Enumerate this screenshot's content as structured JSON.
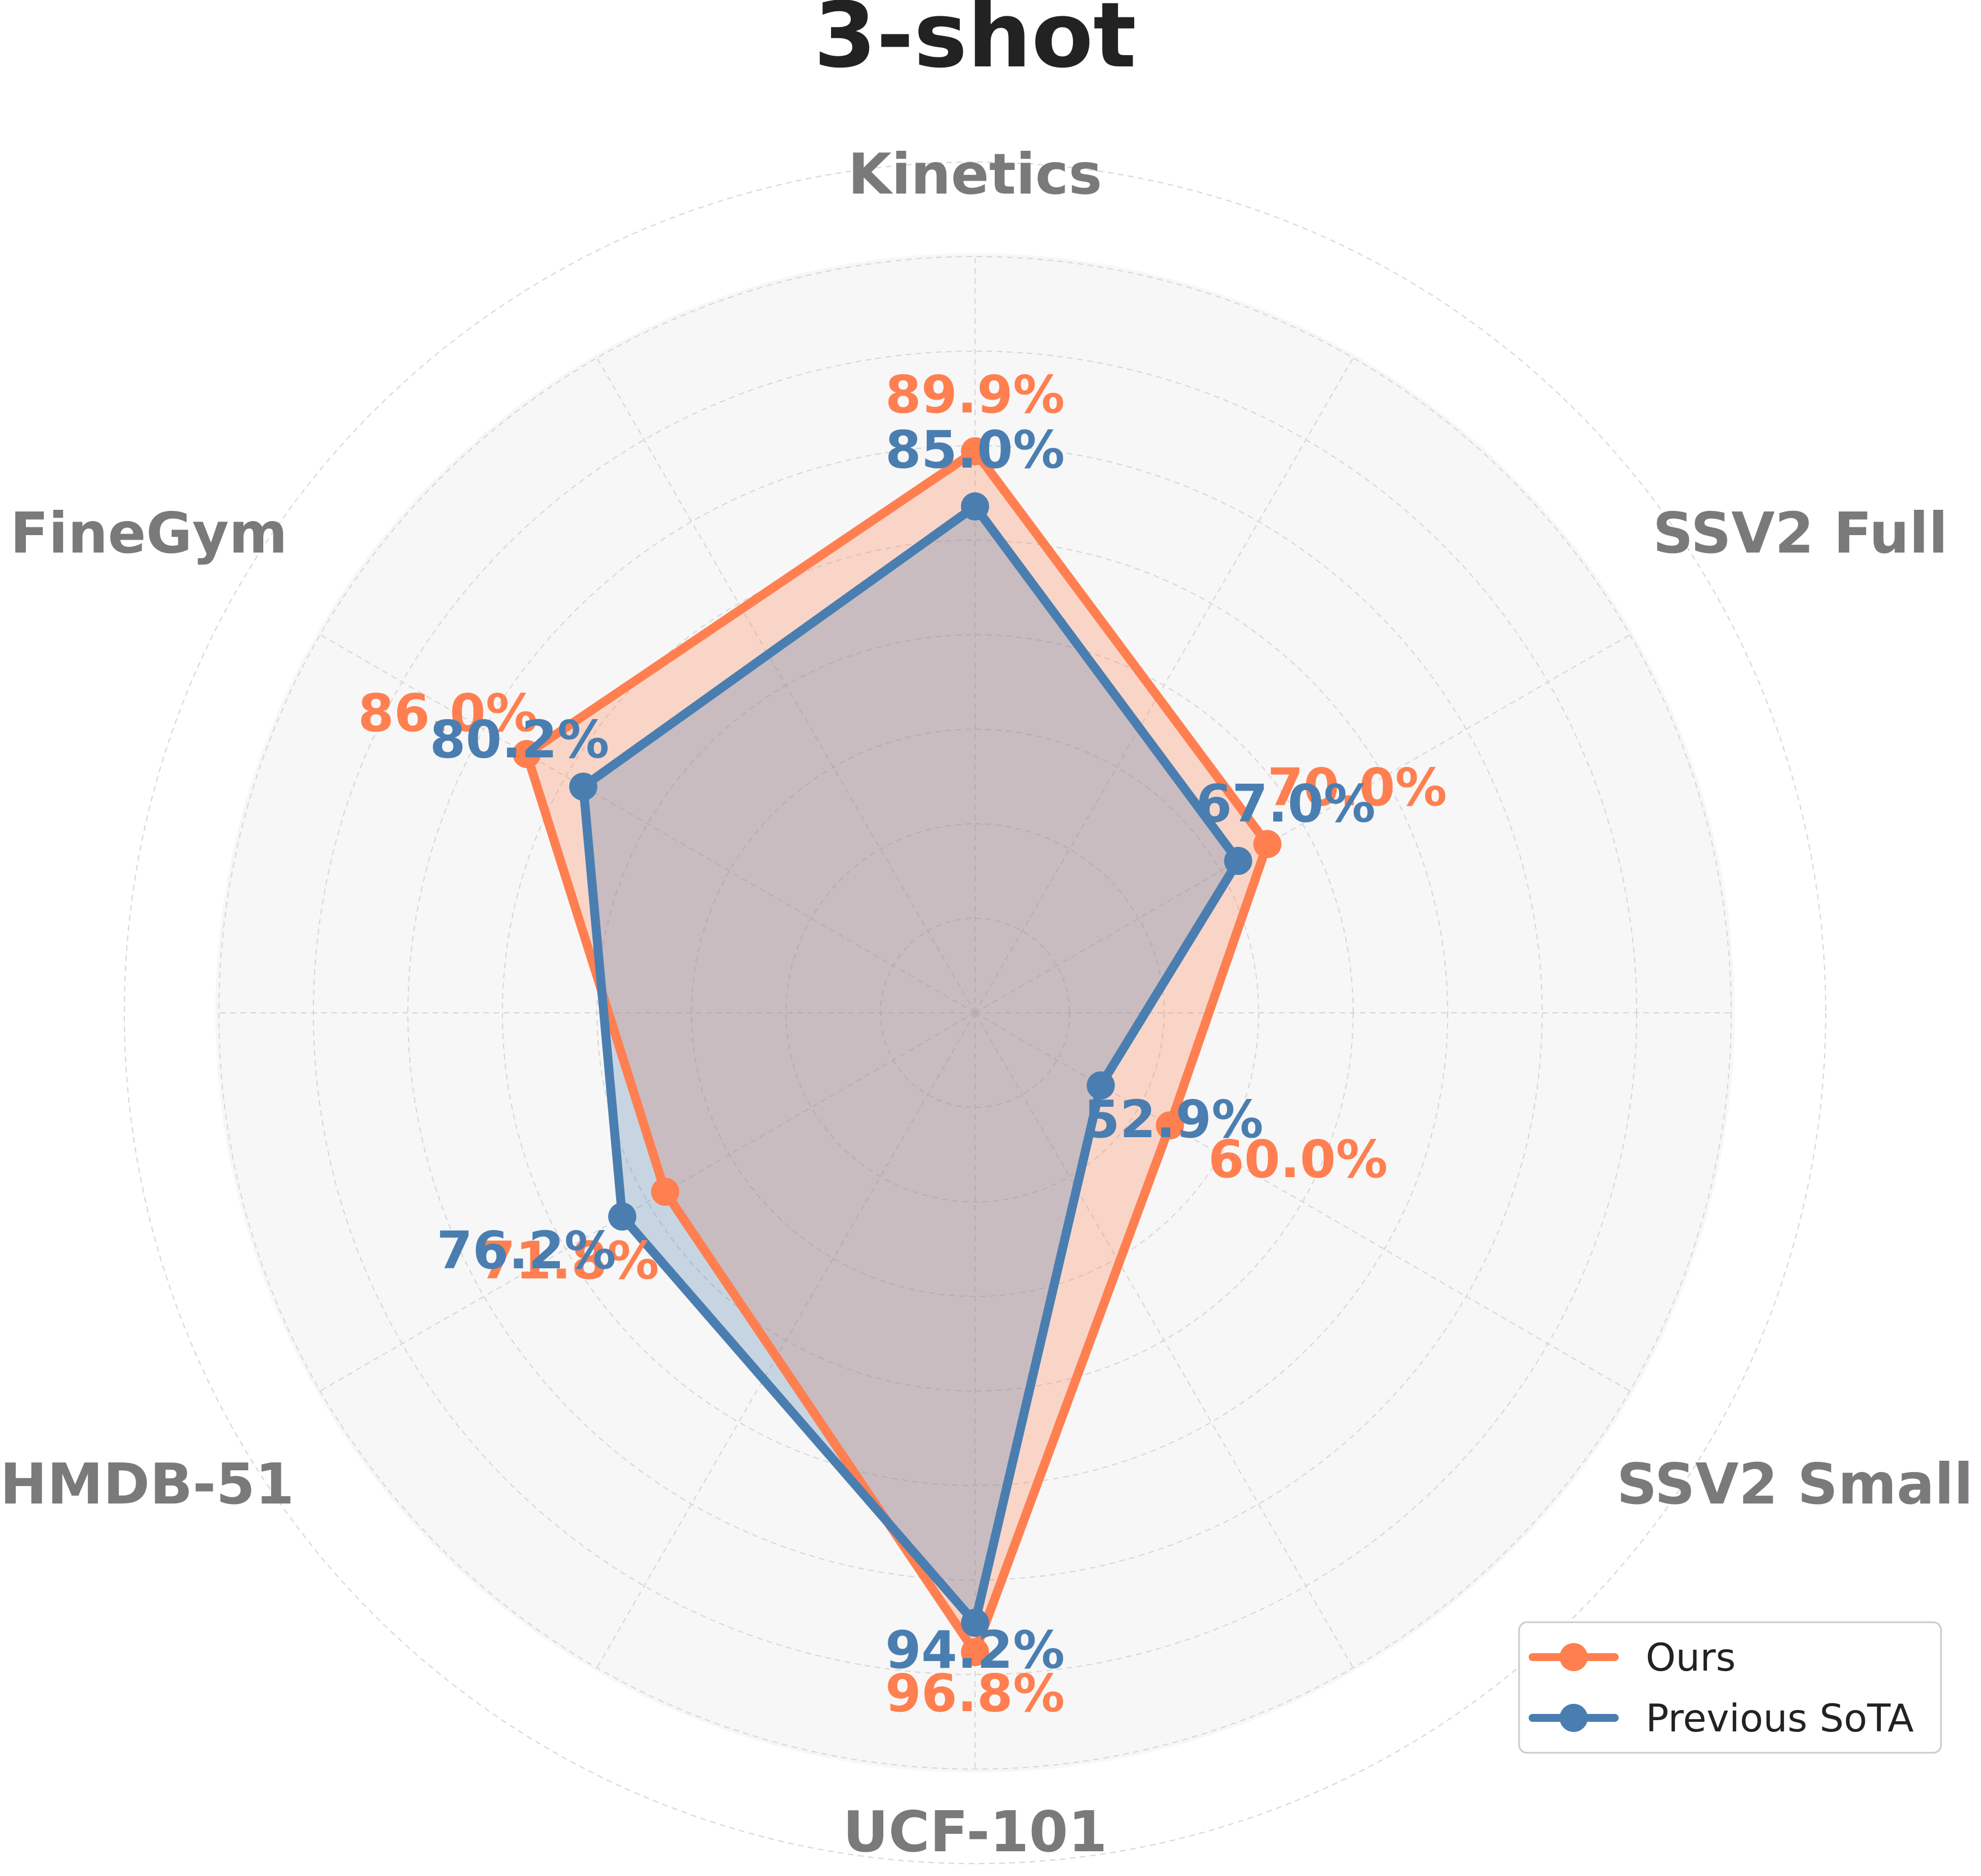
{
  "chart_data": {
    "type": "radar",
    "title": "3-shot",
    "axes": [
      "Kinetics",
      "SSV2 Full",
      "SSV2 Small",
      "UCF-101",
      "HMDB-51",
      "FineGym"
    ],
    "series": [
      {
        "name": "Ours",
        "color": "#ff7f50",
        "values": [
          89.9,
          70.0,
          60.0,
          96.8,
          71.8,
          86.0
        ],
        "labels": [
          "89.9%",
          "70.0%",
          "60.0%",
          "96.8%",
          "71.8%",
          "86.0%"
        ]
      },
      {
        "name": "Previous SoTA",
        "color": "#4a7eb0",
        "values": [
          85.0,
          67.0,
          52.9,
          94.2,
          76.2,
          80.2
        ],
        "labels": [
          "85.0%",
          "67.0%",
          "52.9%",
          "94.2%",
          "76.2%",
          "80.2%"
        ]
      }
    ],
    "legend_position": "bottom-right",
    "grid": true
  }
}
